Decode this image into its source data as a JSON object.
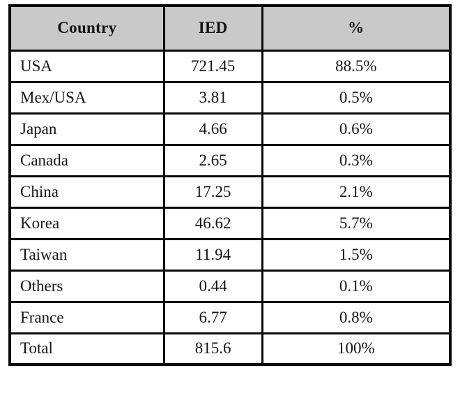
{
  "colors": {
    "header_bg": "#c9c9c9",
    "border": "#0a0a0a",
    "page_bg": "#ffffff",
    "text": "#141414"
  },
  "table": {
    "headers": {
      "country": "Country",
      "ied": "IED",
      "pct": "%"
    },
    "rows": [
      {
        "country": "USA",
        "ied": "721.45",
        "pct": "88.5%"
      },
      {
        "country": "Mex/USA",
        "ied": "3.81",
        "pct": "0.5%"
      },
      {
        "country": "Japan",
        "ied": "4.66",
        "pct": "0.6%"
      },
      {
        "country": "Canada",
        "ied": "2.65",
        "pct": "0.3%"
      },
      {
        "country": "China",
        "ied": "17.25",
        "pct": "2.1%"
      },
      {
        "country": "Korea",
        "ied": "46.62",
        "pct": "5.7%"
      },
      {
        "country": "Taiwan",
        "ied": "11.94",
        "pct": "1.5%"
      },
      {
        "country": "Others",
        "ied": "0.44",
        "pct": "0.1%"
      },
      {
        "country": "France",
        "ied": "6.77",
        "pct": "0.8%"
      },
      {
        "country": "Total",
        "ied": "815.6",
        "pct": "100%"
      }
    ]
  },
  "chart_data": {
    "type": "table",
    "title": "",
    "columns": [
      "Country",
      "IED",
      "%"
    ],
    "categories": [
      "USA",
      "Mex/USA",
      "Japan",
      "Canada",
      "China",
      "Korea",
      "Taiwan",
      "Others",
      "France",
      "Total"
    ],
    "series": [
      {
        "name": "IED",
        "values": [
          721.45,
          3.81,
          4.66,
          2.65,
          17.25,
          46.62,
          11.94,
          0.44,
          6.77,
          815.6
        ]
      },
      {
        "name": "%",
        "values": [
          88.5,
          0.5,
          0.6,
          0.3,
          2.1,
          5.7,
          1.5,
          0.1,
          0.8,
          100
        ]
      }
    ]
  }
}
